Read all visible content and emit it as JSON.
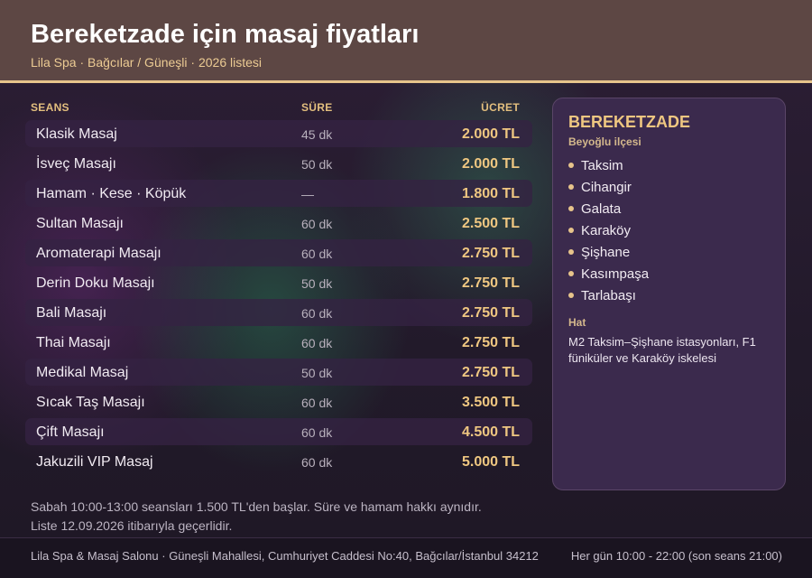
{
  "header": {
    "title": "Bereketzade için masaj fiyatları",
    "subtitle": "Lila Spa · Bağcılar / Güneşli · 2026 listesi"
  },
  "table": {
    "columns": {
      "session": "SEANS",
      "duration": "SÜRE",
      "price": "ÜCRET"
    },
    "rows": [
      {
        "name": "Klasik Masaj",
        "duration": "45 dk",
        "price": "2.000 TL"
      },
      {
        "name": "İsveç Masajı",
        "duration": "50 dk",
        "price": "2.000 TL"
      },
      {
        "name": "Hamam · Kese · Köpük",
        "duration": "—",
        "price": "1.800 TL"
      },
      {
        "name": "Sultan Masajı",
        "duration": "60 dk",
        "price": "2.500 TL"
      },
      {
        "name": "Aromaterapi Masajı",
        "duration": "60 dk",
        "price": "2.750 TL"
      },
      {
        "name": "Derin Doku Masajı",
        "duration": "50 dk",
        "price": "2.750 TL"
      },
      {
        "name": "Bali Masajı",
        "duration": "60 dk",
        "price": "2.750 TL"
      },
      {
        "name": "Thai Masajı",
        "duration": "60 dk",
        "price": "2.750 TL"
      },
      {
        "name": "Medikal Masaj",
        "duration": "50 dk",
        "price": "2.750 TL"
      },
      {
        "name": "Sıcak Taş Masajı",
        "duration": "60 dk",
        "price": "3.500 TL"
      },
      {
        "name": "Çift Masajı",
        "duration": "60 dk",
        "price": "4.500 TL"
      },
      {
        "name": "Jakuzili VIP Masaj",
        "duration": "60 dk",
        "price": "5.000 TL"
      }
    ]
  },
  "notes": {
    "line1": "Sabah 10:00-13:00 seansları 1.500 TL'den başlar. Süre ve hamam hakkı aynıdır.",
    "line2": "Liste 12.09.2026 itibarıyla geçerlidir."
  },
  "panel": {
    "title": "BEREKETZADE",
    "subtitle": "Beyoğlu ilçesi",
    "areas": [
      "Taksim",
      "Cihangir",
      "Galata",
      "Karaköy",
      "Şişhane",
      "Kasımpaşa",
      "Tarlabaşı"
    ],
    "transit_label": "Hat",
    "transit_text": "M2 Taksim–Şişhane istasyonları, F1 füniküler ve Karaköy iskelesi"
  },
  "footer": {
    "address": "Lila Spa & Masaj Salonu · Güneşli Mahallesi, Cumhuriyet Caddesi No:40, Bağcılar/İstanbul 34212",
    "hours": "Her gün 10:00 - 22:00 (son seans 21:00)"
  },
  "colors": {
    "accent_gold": "#efc781",
    "header_bg": "#5d4744",
    "panel_bg": "#3b2a4d"
  }
}
